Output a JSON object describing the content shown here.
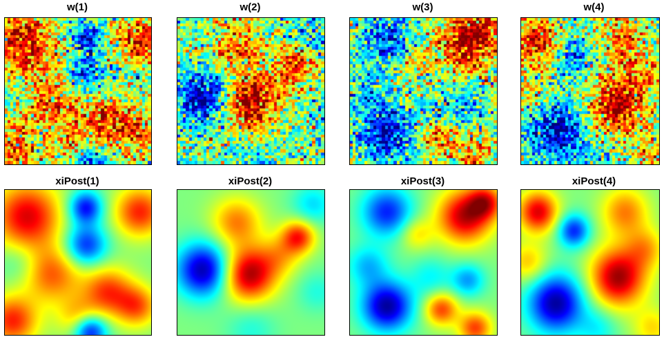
{
  "figure": {
    "panels": [
      {
        "title": "w(1)"
      },
      {
        "title": "w(2)"
      },
      {
        "title": "w(3)"
      },
      {
        "title": "w(4)"
      },
      {
        "title": "xiPost(1)"
      },
      {
        "title": "xiPost(2)"
      },
      {
        "title": "xiPost(3)"
      },
      {
        "title": "xiPost(4)"
      }
    ]
  },
  "chart_data": {
    "type": "heatmap",
    "colormap": "jet",
    "layout": "2 rows x 4 columns",
    "axes_visible": false,
    "panels": [
      {
        "title": "w(1)",
        "style": "noisy",
        "field": "field1"
      },
      {
        "title": "w(2)",
        "style": "noisy",
        "field": "field2"
      },
      {
        "title": "w(3)",
        "style": "noisy",
        "field": "field3"
      },
      {
        "title": "w(4)",
        "style": "noisy",
        "field": "field4"
      },
      {
        "title": "xiPost(1)",
        "style": "smooth",
        "field": "field1"
      },
      {
        "title": "xiPost(2)",
        "style": "smooth",
        "field": "field2"
      },
      {
        "title": "xiPost(3)",
        "style": "smooth",
        "field": "field3"
      },
      {
        "title": "xiPost(4)",
        "style": "smooth",
        "field": "field4"
      }
    ],
    "fields": {
      "field1": [
        {
          "cx": 0.15,
          "cy": 0.18,
          "amp": 1.3,
          "sigma": 0.16
        },
        {
          "cx": 0.55,
          "cy": 0.12,
          "amp": -1.2,
          "sigma": 0.08
        },
        {
          "cx": 0.55,
          "cy": 0.38,
          "amp": -1.1,
          "sigma": 0.1
        },
        {
          "cx": 0.92,
          "cy": 0.15,
          "amp": 1.1,
          "sigma": 0.12
        },
        {
          "cx": 0.32,
          "cy": 0.58,
          "amp": 0.9,
          "sigma": 0.14
        },
        {
          "cx": 0.7,
          "cy": 0.7,
          "amp": 1.0,
          "sigma": 0.12
        },
        {
          "cx": 0.05,
          "cy": 0.9,
          "amp": 1.1,
          "sigma": 0.12
        },
        {
          "cx": 0.5,
          "cy": 0.88,
          "amp": 0.6,
          "sigma": 0.1
        },
        {
          "cx": 0.58,
          "cy": 0.97,
          "amp": -1.3,
          "sigma": 0.08
        },
        {
          "cx": 0.9,
          "cy": 0.8,
          "amp": 0.9,
          "sigma": 0.1
        },
        {
          "cx": 0.1,
          "cy": 0.5,
          "amp": -0.3,
          "sigma": 0.1
        }
      ],
      "field2": [
        {
          "cx": 0.18,
          "cy": 0.55,
          "amp": -1.5,
          "sigma": 0.13
        },
        {
          "cx": 0.48,
          "cy": 0.58,
          "amp": 1.5,
          "sigma": 0.13
        },
        {
          "cx": 0.4,
          "cy": 0.22,
          "amp": 0.8,
          "sigma": 0.12
        },
        {
          "cx": 0.82,
          "cy": 0.32,
          "amp": 1.1,
          "sigma": 0.08
        },
        {
          "cx": 0.7,
          "cy": 0.45,
          "amp": 0.5,
          "sigma": 0.1
        },
        {
          "cx": 0.92,
          "cy": 0.1,
          "amp": -0.5,
          "sigma": 0.1
        },
        {
          "cx": 0.5,
          "cy": 0.95,
          "amp": -0.3,
          "sigma": 0.12
        },
        {
          "cx": 0.95,
          "cy": 0.7,
          "amp": -0.3,
          "sigma": 0.1
        }
      ],
      "field3": [
        {
          "cx": 0.78,
          "cy": 0.18,
          "amp": 1.4,
          "sigma": 0.13
        },
        {
          "cx": 0.92,
          "cy": 0.08,
          "amp": 1.0,
          "sigma": 0.08
        },
        {
          "cx": 0.25,
          "cy": 0.15,
          "amp": -1.1,
          "sigma": 0.12
        },
        {
          "cx": 0.45,
          "cy": 0.3,
          "amp": 0.5,
          "sigma": 0.08
        },
        {
          "cx": 0.12,
          "cy": 0.52,
          "amp": -0.6,
          "sigma": 0.1
        },
        {
          "cx": 0.25,
          "cy": 0.8,
          "amp": -1.5,
          "sigma": 0.12
        },
        {
          "cx": 0.62,
          "cy": 0.82,
          "amp": 1.0,
          "sigma": 0.08
        },
        {
          "cx": 0.8,
          "cy": 0.62,
          "amp": -0.7,
          "sigma": 0.08
        },
        {
          "cx": 0.85,
          "cy": 0.95,
          "amp": 1.0,
          "sigma": 0.08
        },
        {
          "cx": 0.55,
          "cy": 0.6,
          "amp": -0.4,
          "sigma": 0.1
        }
      ],
      "field4": [
        {
          "cx": 0.12,
          "cy": 0.15,
          "amp": 1.3,
          "sigma": 0.1
        },
        {
          "cx": 0.38,
          "cy": 0.28,
          "amp": -1.1,
          "sigma": 0.08
        },
        {
          "cx": 0.75,
          "cy": 0.15,
          "amp": 0.8,
          "sigma": 0.12
        },
        {
          "cx": 0.7,
          "cy": 0.6,
          "amp": 1.5,
          "sigma": 0.14
        },
        {
          "cx": 0.25,
          "cy": 0.78,
          "amp": -1.5,
          "sigma": 0.14
        },
        {
          "cx": 0.05,
          "cy": 0.5,
          "amp": 0.6,
          "sigma": 0.1
        },
        {
          "cx": 0.9,
          "cy": 0.4,
          "amp": 0.6,
          "sigma": 0.1
        },
        {
          "cx": 0.55,
          "cy": 0.95,
          "amp": -0.4,
          "sigma": 0.1
        },
        {
          "cx": 0.95,
          "cy": 0.95,
          "amp": 0.5,
          "sigma": 0.1
        }
      ]
    },
    "grid": 50,
    "noise": 0.45
  }
}
